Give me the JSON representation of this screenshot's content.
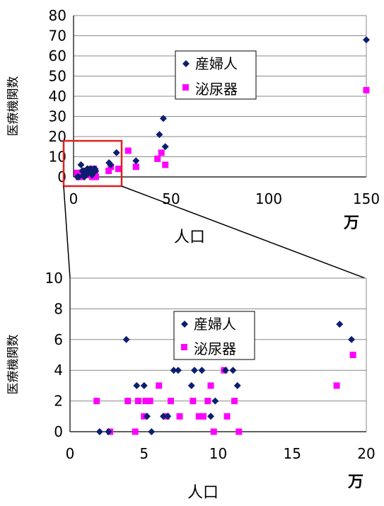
{
  "colors": {
    "series_a": "#0b1f6e",
    "series_b": "#ff00ff",
    "grid": "#8a8a8a",
    "zoom_box": "#e02020"
  },
  "chart_data": [
    {
      "type": "scatter",
      "xlabel": "人口",
      "x_unit": "万",
      "ylabel": "医療機関数",
      "xlim": [
        0,
        150
      ],
      "ylim": [
        0,
        80
      ],
      "xticks": [
        "0",
        "50",
        "100",
        "150"
      ],
      "yticks": [
        "0",
        "10",
        "20",
        "30",
        "40",
        "50",
        "60",
        "70",
        "80"
      ],
      "grid": true,
      "legend": "center",
      "zoom_region": {
        "x": [
          0,
          20
        ],
        "y": [
          0,
          10
        ]
      },
      "series": [
        {
          "name": "産婦人",
          "marker": "diamond",
          "points": [
            [
              2.0,
              0
            ],
            [
              2.6,
              0
            ],
            [
              3.8,
              6
            ],
            [
              4.5,
              3
            ],
            [
              5.0,
              3
            ],
            [
              5.2,
              1
            ],
            [
              5.5,
              0
            ],
            [
              6.3,
              1
            ],
            [
              6.6,
              1
            ],
            [
              7.0,
              4
            ],
            [
              7.3,
              4
            ],
            [
              8.2,
              3
            ],
            [
              8.4,
              4
            ],
            [
              8.9,
              4
            ],
            [
              9.5,
              1
            ],
            [
              9.8,
              2
            ],
            [
              10.5,
              4
            ],
            [
              11.0,
              4
            ],
            [
              11.3,
              3
            ],
            [
              18.2,
              7
            ],
            [
              19.0,
              6
            ],
            [
              22,
              12
            ],
            [
              32,
              8
            ],
            [
              44,
              21
            ],
            [
              46,
              29
            ],
            [
              47,
              15
            ],
            [
              150,
              68
            ]
          ]
        },
        {
          "name": "泌尿器",
          "marker": "square",
          "points": [
            [
              1.8,
              2
            ],
            [
              2.7,
              0
            ],
            [
              3.9,
              2
            ],
            [
              4.4,
              0
            ],
            [
              4.6,
              2
            ],
            [
              5.0,
              1
            ],
            [
              5.1,
              2
            ],
            [
              5.4,
              2
            ],
            [
              6.0,
              3
            ],
            [
              6.5,
              1
            ],
            [
              6.8,
              2
            ],
            [
              7.4,
              1
            ],
            [
              8.3,
              2
            ],
            [
              8.7,
              1
            ],
            [
              9.0,
              1
            ],
            [
              9.3,
              2
            ],
            [
              9.5,
              3
            ],
            [
              9.7,
              0
            ],
            [
              10.4,
              4
            ],
            [
              10.6,
              1
            ],
            [
              11.1,
              2
            ],
            [
              11.4,
              0
            ],
            [
              18.0,
              3
            ],
            [
              19.1,
              5
            ],
            [
              23,
              4
            ],
            [
              28,
              13
            ],
            [
              32,
              5
            ],
            [
              43,
              9
            ],
            [
              45,
              12
            ],
            [
              47,
              6
            ],
            [
              150,
              43
            ]
          ]
        }
      ]
    },
    {
      "type": "scatter",
      "xlabel": "人口",
      "x_unit": "万",
      "ylabel": "医療機関数",
      "xlim": [
        0,
        20
      ],
      "ylim": [
        0,
        10
      ],
      "xticks": [
        "0",
        "5",
        "10",
        "15",
        "20"
      ],
      "yticks": [
        "0",
        "2",
        "4",
        "6",
        "8",
        "10"
      ],
      "grid": true,
      "legend": "center",
      "series_ref": "same as chart 1, filtered to x ≤ 20, y ≤ 10"
    }
  ]
}
